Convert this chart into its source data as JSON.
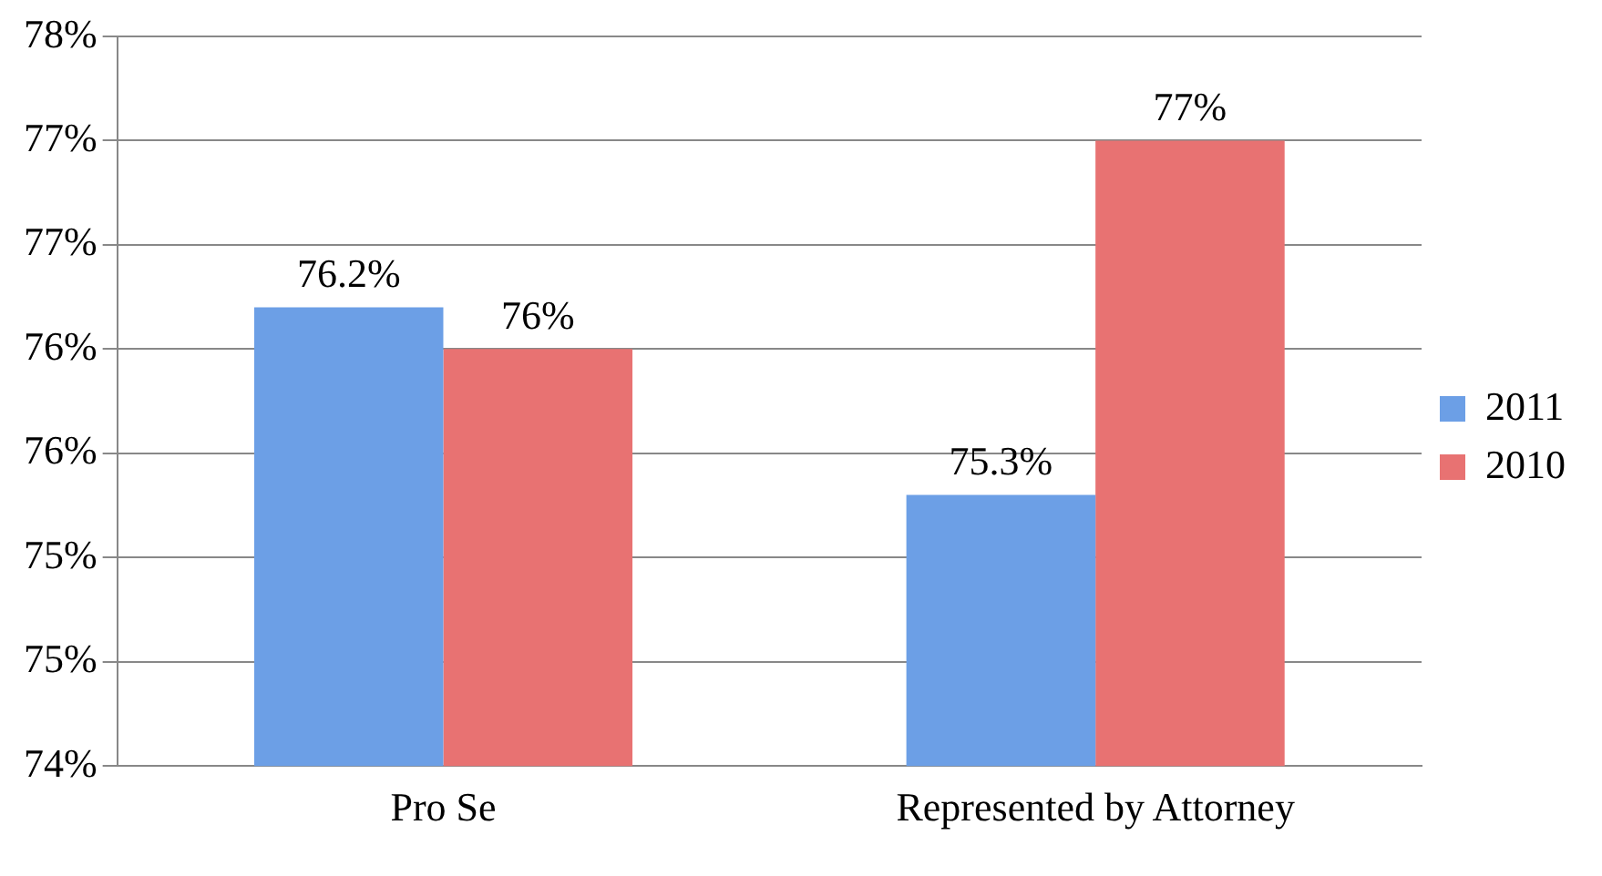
{
  "chart_data": {
    "type": "bar",
    "categories": [
      "Pro Se",
      "Represented by Attorney"
    ],
    "series": [
      {
        "name": "2011",
        "color": "#6c9fe6",
        "values": [
          76.2,
          75.3
        ],
        "value_labels": [
          "76.2%",
          "75.3%"
        ]
      },
      {
        "name": "2010",
        "color": "#e87272",
        "values": [
          76,
          77
        ],
        "value_labels": [
          "76%",
          "77%"
        ]
      }
    ],
    "ylim": [
      74,
      77.5
    ],
    "yticks": [
      {
        "value": 74,
        "label": "74%"
      },
      {
        "value": 74.5,
        "label": "75%"
      },
      {
        "value": 75,
        "label": "75%"
      },
      {
        "value": 75.5,
        "label": "76%"
      },
      {
        "value": 76,
        "label": "76%"
      },
      {
        "value": 76.5,
        "label": "77%"
      },
      {
        "value": 77,
        "label": "77%"
      },
      {
        "value": 77.5,
        "label": "78%"
      }
    ],
    "grid": "y",
    "legend": "right"
  }
}
